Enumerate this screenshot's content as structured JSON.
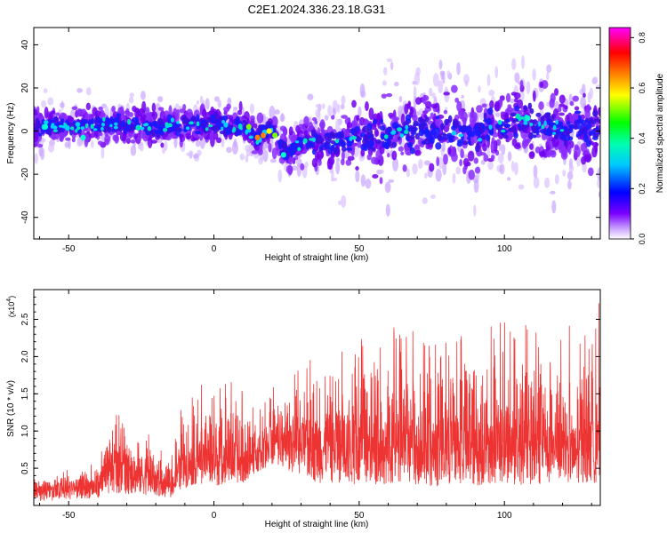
{
  "figure_title": "C2E1.2024.336.23.18.G31",
  "chart_data": [
    {
      "type": "heatmap",
      "title": "",
      "xlabel": "Height of straight line (km)",
      "ylabel": "Frequency (Hz)",
      "xlim": [
        -62,
        133
      ],
      "ylim": [
        -50,
        48
      ],
      "xticks": [
        -50,
        0,
        50,
        100
      ],
      "yticks": [
        -40,
        -20,
        0,
        20,
        40
      ],
      "colorbar": {
        "label": "Normalized spectral amplitude",
        "range": [
          0.0,
          0.84
        ],
        "ticks": [
          0.0,
          0.2,
          0.4,
          0.6,
          0.8
        ],
        "colors": [
          "#ffffff",
          "#7a00ff",
          "#0000ff",
          "#00ffff",
          "#00ff00",
          "#ffff00",
          "#ff8000",
          "#ff0000",
          "#ff00ff"
        ]
      },
      "band_center_hz": [
        {
          "height_km": -60,
          "hz": 2
        },
        {
          "height_km": -40,
          "hz": 3
        },
        {
          "height_km": -20,
          "hz": 2
        },
        {
          "height_km": 0,
          "hz": 3
        },
        {
          "height_km": 10,
          "hz": 2
        },
        {
          "height_km": 15,
          "hz": -3
        },
        {
          "height_km": 20,
          "hz": 1
        },
        {
          "height_km": 25,
          "hz": -10
        },
        {
          "height_km": 30,
          "hz": -5
        },
        {
          "height_km": 50,
          "hz": -4
        },
        {
          "height_km": 70,
          "hz": 0
        },
        {
          "height_km": 90,
          "hz": -2
        },
        {
          "height_km": 105,
          "hz": 6
        },
        {
          "height_km": 120,
          "hz": 0
        },
        {
          "height_km": 133,
          "hz": 2
        }
      ],
      "hotspots": [
        {
          "height_km": -58,
          "hz": 2,
          "amplitude": 0.25
        },
        {
          "height_km": -45,
          "hz": -3,
          "amplitude": 0.3
        },
        {
          "height_km": 12,
          "hz": 2,
          "amplitude": 0.45
        },
        {
          "height_km": 15,
          "hz": -3,
          "amplitude": 0.65
        },
        {
          "height_km": 17,
          "hz": -2,
          "amplitude": 0.7
        },
        {
          "height_km": 19,
          "hz": 0,
          "amplitude": 0.6
        },
        {
          "height_km": 21,
          "hz": -2,
          "amplitude": 0.5
        },
        {
          "height_km": 24,
          "hz": -11,
          "amplitude": 0.3
        },
        {
          "height_km": 108,
          "hz": 6,
          "amplitude": 0.3
        }
      ]
    },
    {
      "type": "line",
      "title": "",
      "xlabel": "Height of straight line (km)",
      "ylabel": "SNR (10 * v/v)",
      "y_multiplier": "(x10",
      "y_multiplier_exp": "4",
      "xlim": [
        -62,
        133
      ],
      "ylim": [
        0,
        2.9
      ],
      "xticks": [
        -50,
        0,
        50,
        100
      ],
      "yticks": [
        0.5,
        1.0,
        1.5,
        2.0,
        2.5
      ],
      "ytick_labels": [
        "0.5",
        "1.0",
        "1.5",
        "2.0",
        "2.5"
      ],
      "color": "#ee3333",
      "envelope": {
        "x": [
          -62,
          -40,
          -35,
          -25,
          -15,
          -12,
          -5,
          0,
          5,
          10,
          15,
          20,
          30,
          35,
          45,
          50,
          60,
          75,
          90,
          100,
          110,
          120,
          130,
          133
        ],
        "baseline": [
          0.05,
          0.1,
          0.15,
          0.15,
          0.1,
          0.2,
          0.3,
          0.25,
          0.3,
          0.3,
          0.45,
          0.55,
          0.4,
          0.3,
          0.3,
          0.25,
          0.3,
          0.25,
          0.25,
          0.3,
          0.25,
          0.3,
          0.3,
          0.3
        ],
        "body": [
          0.22,
          0.35,
          0.65,
          0.55,
          0.25,
          0.6,
          0.75,
          0.7,
          0.85,
          0.65,
          0.75,
          0.95,
          1.0,
          1.05,
          1.1,
          1.0,
          1.0,
          1.0,
          1.0,
          1.05,
          1.0,
          0.9,
          1.0,
          1.0
        ],
        "peaks": [
          0.35,
          0.6,
          1.25,
          1.1,
          0.6,
          1.25,
          1.65,
          1.6,
          1.75,
          1.6,
          1.3,
          1.6,
          1.85,
          2.15,
          2.25,
          2.3,
          2.4,
          2.35,
          2.4,
          2.5,
          2.5,
          2.45,
          2.3,
          2.8
        ]
      }
    }
  ]
}
